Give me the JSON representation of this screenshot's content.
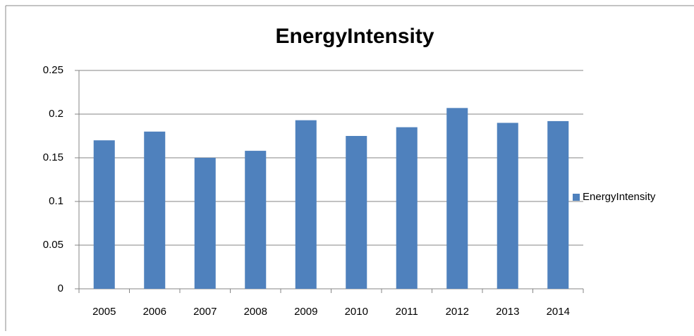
{
  "chart_data": {
    "type": "bar",
    "title": "EnergyIntensity",
    "categories": [
      "2005",
      "2006",
      "2007",
      "2008",
      "2009",
      "2010",
      "2011",
      "2012",
      "2013",
      "2014"
    ],
    "series": [
      {
        "name": "EnergyIntensity",
        "color": "#4f81bd",
        "values": [
          0.17,
          0.18,
          0.15,
          0.158,
          0.193,
          0.175,
          0.185,
          0.207,
          0.19,
          0.192
        ]
      }
    ],
    "ylim": [
      0,
      0.25
    ],
    "yticks": [
      0,
      0.05,
      0.1,
      0.15,
      0.2,
      0.25
    ],
    "grid": true,
    "legend": "right"
  }
}
